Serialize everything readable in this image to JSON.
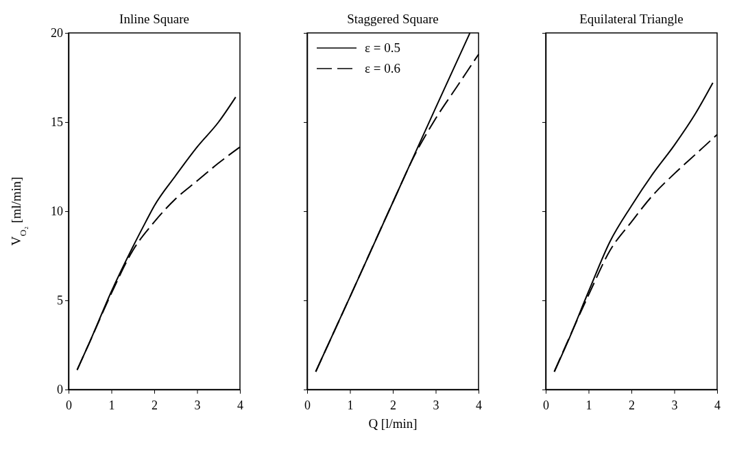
{
  "chart_data": [
    {
      "type": "line",
      "title": "Inline Square",
      "ylabel": "V$_{O₂}$ [ml/min]",
      "xlim": [
        0,
        4
      ],
      "xticks": [
        0,
        1,
        2,
        3,
        4
      ],
      "ylim": [
        0,
        20
      ],
      "yticks": [
        0,
        5,
        10,
        15,
        20
      ],
      "grid": false,
      "legend": false,
      "marker": "none",
      "series": [
        {
          "color": "#000000",
          "line_style": "solid",
          "x": [
            0.2,
            0.5,
            1,
            1.5,
            1.8,
            2,
            2.5,
            3,
            3.5,
            3.9
          ],
          "values": [
            1.1,
            2.7,
            5.5,
            8,
            9.4,
            10.3,
            12,
            13.6,
            15,
            16.4
          ]
        },
        {
          "color": "#000000",
          "line_style": "dashed",
          "x": [
            0.2,
            0.5,
            1,
            1.5,
            2,
            2.5,
            3,
            3.5,
            4
          ],
          "values": [
            1.1,
            2.7,
            5.4,
            7.8,
            9.4,
            10.7,
            11.7,
            12.7,
            13.6
          ]
        }
      ]
    },
    {
      "type": "line",
      "title": "Staggered Square",
      "xlabel": "Q [l/min]",
      "xlim": [
        0,
        4
      ],
      "xticks": [
        0,
        1,
        2,
        3,
        4
      ],
      "ylim": [
        0,
        20
      ],
      "yticks": [
        0,
        5,
        10,
        15,
        20
      ],
      "tick_labels": "x",
      "grid": false,
      "legend": "top left",
      "marker": "none",
      "series": [
        {
          "name": "ε = 0.5",
          "color": "#000000",
          "line_style": "solid",
          "x": [
            0.2,
            1,
            2,
            3,
            3.8
          ],
          "values": [
            1.0,
            5.2,
            10.5,
            15.8,
            20
          ]
        },
        {
          "name": "ε = 0.6",
          "color": "#000000",
          "line_style": "dashed",
          "x": [
            0.2,
            1,
            2,
            2.5,
            3,
            3.5,
            4
          ],
          "values": [
            1.0,
            5.2,
            10.5,
            13.1,
            15.2,
            17,
            18.8
          ]
        }
      ]
    },
    {
      "type": "line",
      "title": "Equilateral Triangle",
      "xlim": [
        0,
        4
      ],
      "xticks": [
        0,
        1,
        2,
        3,
        4
      ],
      "ylim": [
        0,
        20
      ],
      "yticks": [
        0,
        5,
        10,
        15,
        20
      ],
      "tick_labels": "x",
      "grid": false,
      "legend": false,
      "marker": "none",
      "series": [
        {
          "color": "#000000",
          "line_style": "solid",
          "x": [
            0.2,
            0.5,
            1,
            1.5,
            2,
            2.5,
            3,
            3.5,
            3.9
          ],
          "values": [
            1.0,
            2.6,
            5.5,
            8.3,
            10.3,
            12.1,
            13.7,
            15.5,
            17.2
          ]
        },
        {
          "color": "#000000",
          "line_style": "dashed",
          "x": [
            0.2,
            1,
            1.5,
            2,
            2.5,
            3,
            3.5,
            4
          ],
          "values": [
            1.0,
            5.3,
            7.8,
            9.4,
            10.9,
            12.1,
            13.2,
            14.3
          ]
        }
      ]
    }
  ]
}
